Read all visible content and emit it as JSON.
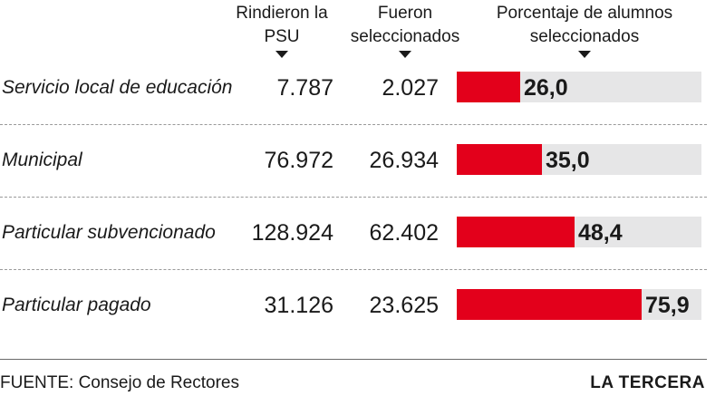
{
  "headers": {
    "rindieron": "Rindieron la PSU",
    "fueron": "Fueron seleccionados",
    "porcentaje": "Porcentaje de alumnos seleccionados"
  },
  "chart_data": {
    "type": "table",
    "columns": [
      "Rindieron la PSU",
      "Fueron seleccionados",
      "Porcentaje de alumnos seleccionados"
    ],
    "xlim": [
      0,
      76
    ],
    "bar_color": "#e3001b",
    "track_color": "#e6e6e7",
    "rows": [
      {
        "category": "Servicio local de educación",
        "rindieron": "7.787",
        "fueron": "2.027",
        "percent": 26.0,
        "percent_label": "26,0"
      },
      {
        "category": "Municipal",
        "rindieron": "76.972",
        "fueron": "26.934",
        "percent": 35.0,
        "percent_label": "35,0"
      },
      {
        "category": "Particular subvencionado",
        "rindieron": "128.924",
        "fueron": "62.402",
        "percent": 48.4,
        "percent_label": "48,4"
      },
      {
        "category": "Particular pagado",
        "rindieron": "31.126",
        "fueron": "23.625",
        "percent": 75.9,
        "percent_label": "75,9"
      }
    ]
  },
  "footer": {
    "source_label": "FUENTE:",
    "source_text": "Consejo de Rectores",
    "credit": "LA TERCERA"
  }
}
